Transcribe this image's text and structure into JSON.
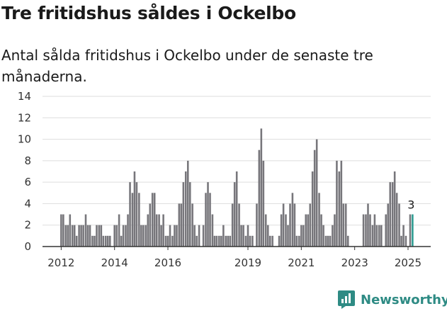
{
  "title": "Tre fritidshus såldes i Ockelbo",
  "subtitle": "Antal sålda fritidshus i Ockelbo under de senaste tre månaderna.",
  "brand": {
    "name": "Newsworthy",
    "icon": "newsworthy-logo-icon"
  },
  "colors": {
    "bar": "#77767b",
    "highlight": "#2e9c92",
    "brand": "#2e8b84",
    "grid": "#dddddd",
    "text": "#333333"
  },
  "chart_data": {
    "type": "bar",
    "title": "Tre fritidshus såldes i Ockelbo",
    "subtitle": "Antal sålda fritidshus i Ockelbo under de senaste tre månaderna.",
    "xlabel": "",
    "ylabel": "",
    "ylim": [
      0,
      14
    ],
    "xlim": [
      2011.3,
      2025.85
    ],
    "y_ticks": [
      0,
      2,
      4,
      6,
      8,
      10,
      12,
      14
    ],
    "x_ticks": [
      2012,
      2014,
      2016,
      2019,
      2021,
      2023,
      2025
    ],
    "grid": true,
    "highlight_label": "3",
    "series": [
      {
        "values": [
          {
            "x": 2012.0,
            "y": 3
          },
          {
            "x": 2012.08,
            "y": 3
          },
          {
            "x": 2012.17,
            "y": 2
          },
          {
            "x": 2012.25,
            "y": 2
          },
          {
            "x": 2012.33,
            "y": 3
          },
          {
            "x": 2012.42,
            "y": 2
          },
          {
            "x": 2012.5,
            "y": 2
          },
          {
            "x": 2012.58,
            "y": 1
          },
          {
            "x": 2012.67,
            "y": 2
          },
          {
            "x": 2012.75,
            "y": 2
          },
          {
            "x": 2012.83,
            "y": 2
          },
          {
            "x": 2012.92,
            "y": 3
          },
          {
            "x": 2013.0,
            "y": 2
          },
          {
            "x": 2013.08,
            "y": 2
          },
          {
            "x": 2013.17,
            "y": 1
          },
          {
            "x": 2013.25,
            "y": 1
          },
          {
            "x": 2013.33,
            "y": 2
          },
          {
            "x": 2013.42,
            "y": 2
          },
          {
            "x": 2013.5,
            "y": 2
          },
          {
            "x": 2013.58,
            "y": 1
          },
          {
            "x": 2013.67,
            "y": 1
          },
          {
            "x": 2013.75,
            "y": 1
          },
          {
            "x": 2013.83,
            "y": 1
          },
          {
            "x": 2013.92,
            "y": 0
          },
          {
            "x": 2014.0,
            "y": 2
          },
          {
            "x": 2014.08,
            "y": 2
          },
          {
            "x": 2014.17,
            "y": 3
          },
          {
            "x": 2014.25,
            "y": 1
          },
          {
            "x": 2014.33,
            "y": 2
          },
          {
            "x": 2014.42,
            "y": 2
          },
          {
            "x": 2014.5,
            "y": 3
          },
          {
            "x": 2014.58,
            "y": 6
          },
          {
            "x": 2014.67,
            "y": 5
          },
          {
            "x": 2014.75,
            "y": 7
          },
          {
            "x": 2014.83,
            "y": 6
          },
          {
            "x": 2014.92,
            "y": 5
          },
          {
            "x": 2015.0,
            "y": 2
          },
          {
            "x": 2015.08,
            "y": 2
          },
          {
            "x": 2015.17,
            "y": 2
          },
          {
            "x": 2015.25,
            "y": 3
          },
          {
            "x": 2015.33,
            "y": 4
          },
          {
            "x": 2015.42,
            "y": 5
          },
          {
            "x": 2015.5,
            "y": 5
          },
          {
            "x": 2015.58,
            "y": 3
          },
          {
            "x": 2015.67,
            "y": 3
          },
          {
            "x": 2015.75,
            "y": 2
          },
          {
            "x": 2015.83,
            "y": 3
          },
          {
            "x": 2015.92,
            "y": 1
          },
          {
            "x": 2016.0,
            "y": 1
          },
          {
            "x": 2016.08,
            "y": 2
          },
          {
            "x": 2016.17,
            "y": 1
          },
          {
            "x": 2016.25,
            "y": 2
          },
          {
            "x": 2016.33,
            "y": 2
          },
          {
            "x": 2016.42,
            "y": 4
          },
          {
            "x": 2016.5,
            "y": 4
          },
          {
            "x": 2016.58,
            "y": 6
          },
          {
            "x": 2016.67,
            "y": 7
          },
          {
            "x": 2016.75,
            "y": 8
          },
          {
            "x": 2016.83,
            "y": 6
          },
          {
            "x": 2016.92,
            "y": 4
          },
          {
            "x": 2017.0,
            "y": 2
          },
          {
            "x": 2017.08,
            "y": 1
          },
          {
            "x": 2017.17,
            "y": 2
          },
          {
            "x": 2017.25,
            "y": 0
          },
          {
            "x": 2017.33,
            "y": 2
          },
          {
            "x": 2017.42,
            "y": 5
          },
          {
            "x": 2017.5,
            "y": 6
          },
          {
            "x": 2017.58,
            "y": 5
          },
          {
            "x": 2017.67,
            "y": 3
          },
          {
            "x": 2017.75,
            "y": 1
          },
          {
            "x": 2017.83,
            "y": 1
          },
          {
            "x": 2017.92,
            "y": 1
          },
          {
            "x": 2018.0,
            "y": 1
          },
          {
            "x": 2018.08,
            "y": 2
          },
          {
            "x": 2018.17,
            "y": 1
          },
          {
            "x": 2018.25,
            "y": 1
          },
          {
            "x": 2018.33,
            "y": 1
          },
          {
            "x": 2018.42,
            "y": 4
          },
          {
            "x": 2018.5,
            "y": 6
          },
          {
            "x": 2018.58,
            "y": 7
          },
          {
            "x": 2018.67,
            "y": 4
          },
          {
            "x": 2018.75,
            "y": 2
          },
          {
            "x": 2018.83,
            "y": 2
          },
          {
            "x": 2018.92,
            "y": 1
          },
          {
            "x": 2019.0,
            "y": 2
          },
          {
            "x": 2019.08,
            "y": 1
          },
          {
            "x": 2019.17,
            "y": 1
          },
          {
            "x": 2019.25,
            "y": 0
          },
          {
            "x": 2019.33,
            "y": 4
          },
          {
            "x": 2019.42,
            "y": 9
          },
          {
            "x": 2019.5,
            "y": 11
          },
          {
            "x": 2019.58,
            "y": 8
          },
          {
            "x": 2019.67,
            "y": 3
          },
          {
            "x": 2019.75,
            "y": 2
          },
          {
            "x": 2019.83,
            "y": 1
          },
          {
            "x": 2019.92,
            "y": 1
          },
          {
            "x": 2020.0,
            "y": 0
          },
          {
            "x": 2020.08,
            "y": 0
          },
          {
            "x": 2020.17,
            "y": 1
          },
          {
            "x": 2020.25,
            "y": 3
          },
          {
            "x": 2020.33,
            "y": 4
          },
          {
            "x": 2020.42,
            "y": 3
          },
          {
            "x": 2020.5,
            "y": 2
          },
          {
            "x": 2020.58,
            "y": 4
          },
          {
            "x": 2020.67,
            "y": 5
          },
          {
            "x": 2020.75,
            "y": 4
          },
          {
            "x": 2020.83,
            "y": 1
          },
          {
            "x": 2020.92,
            "y": 1
          },
          {
            "x": 2021.0,
            "y": 2
          },
          {
            "x": 2021.08,
            "y": 2
          },
          {
            "x": 2021.17,
            "y": 3
          },
          {
            "x": 2021.25,
            "y": 3
          },
          {
            "x": 2021.33,
            "y": 4
          },
          {
            "x": 2021.42,
            "y": 7
          },
          {
            "x": 2021.5,
            "y": 9
          },
          {
            "x": 2021.58,
            "y": 10
          },
          {
            "x": 2021.67,
            "y": 5
          },
          {
            "x": 2021.75,
            "y": 3
          },
          {
            "x": 2021.83,
            "y": 2
          },
          {
            "x": 2021.92,
            "y": 1
          },
          {
            "x": 2022.0,
            "y": 1
          },
          {
            "x": 2022.08,
            "y": 1
          },
          {
            "x": 2022.17,
            "y": 2
          },
          {
            "x": 2022.25,
            "y": 3
          },
          {
            "x": 2022.33,
            "y": 8
          },
          {
            "x": 2022.42,
            "y": 7
          },
          {
            "x": 2022.5,
            "y": 8
          },
          {
            "x": 2022.58,
            "y": 4
          },
          {
            "x": 2022.67,
            "y": 4
          },
          {
            "x": 2022.75,
            "y": 1
          },
          {
            "x": 2022.83,
            "y": 0
          },
          {
            "x": 2022.92,
            "y": 0
          },
          {
            "x": 2023.0,
            "y": 0
          },
          {
            "x": 2023.08,
            "y": 0
          },
          {
            "x": 2023.17,
            "y": 0
          },
          {
            "x": 2023.25,
            "y": 0
          },
          {
            "x": 2023.33,
            "y": 3
          },
          {
            "x": 2023.42,
            "y": 3
          },
          {
            "x": 2023.5,
            "y": 4
          },
          {
            "x": 2023.58,
            "y": 3
          },
          {
            "x": 2023.67,
            "y": 2
          },
          {
            "x": 2023.75,
            "y": 3
          },
          {
            "x": 2023.83,
            "y": 2
          },
          {
            "x": 2023.92,
            "y": 2
          },
          {
            "x": 2024.0,
            "y": 2
          },
          {
            "x": 2024.08,
            "y": 0
          },
          {
            "x": 2024.17,
            "y": 3
          },
          {
            "x": 2024.25,
            "y": 4
          },
          {
            "x": 2024.33,
            "y": 6
          },
          {
            "x": 2024.42,
            "y": 6
          },
          {
            "x": 2024.5,
            "y": 7
          },
          {
            "x": 2024.58,
            "y": 5
          },
          {
            "x": 2024.67,
            "y": 4
          },
          {
            "x": 2024.75,
            "y": 1
          },
          {
            "x": 2024.83,
            "y": 2
          },
          {
            "x": 2024.92,
            "y": 1
          },
          {
            "x": 2025.0,
            "y": 0
          },
          {
            "x": 2025.08,
            "y": 3
          },
          {
            "x": 2025.17,
            "y": 3,
            "highlight": true
          }
        ]
      }
    ]
  }
}
